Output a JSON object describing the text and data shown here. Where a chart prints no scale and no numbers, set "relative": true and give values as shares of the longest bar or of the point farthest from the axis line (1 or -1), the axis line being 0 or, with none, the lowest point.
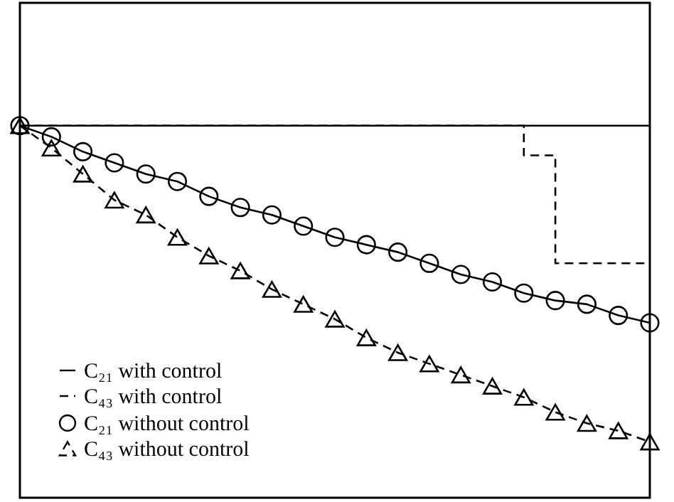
{
  "chart_data": {
    "type": "line",
    "relative": true,
    "tick_labels": false,
    "legend": "bottom left",
    "grid": false,
    "categories": [
      null,
      null,
      null,
      null,
      null,
      null,
      null,
      null,
      null,
      null,
      null,
      null,
      null,
      null,
      null,
      null,
      null,
      null,
      null,
      null,
      null
    ],
    "series": [
      {
        "name": "C₂₁ with control",
        "color": "#000000",
        "line_style": "solid",
        "marker": "none",
        "values": [
          1,
          1,
          1,
          1,
          1,
          1,
          1,
          1,
          1,
          1,
          1,
          1,
          1,
          1,
          1,
          1,
          1,
          1,
          1,
          1,
          1
        ]
      },
      {
        "name": "C₄₃ with control",
        "type": "step",
        "color": "#000000",
        "line_style": "dashed",
        "marker": "none",
        "values": [
          1,
          1,
          1,
          1,
          1,
          1,
          1,
          1,
          1,
          1,
          1,
          1,
          1,
          1,
          1,
          1,
          0.92,
          0.63,
          0.63,
          0.63,
          0.63
        ]
      },
      {
        "name": "C₂₁ without control",
        "color": "#000000",
        "line_style": "solid",
        "marker": "circle",
        "values": [
          1.0,
          0.97,
          0.93,
          0.9,
          0.87,
          0.85,
          0.81,
          0.78,
          0.76,
          0.73,
          0.7,
          0.68,
          0.66,
          0.63,
          0.6,
          0.58,
          0.55,
          0.53,
          0.52,
          0.49,
          0.47
        ]
      },
      {
        "name": "C₄₃ without control",
        "color": "#000000",
        "line_style": "dashed",
        "marker": "triangle",
        "values": [
          1.0,
          0.94,
          0.87,
          0.8,
          0.76,
          0.7,
          0.65,
          0.61,
          0.56,
          0.52,
          0.48,
          0.43,
          0.39,
          0.36,
          0.33,
          0.3,
          0.27,
          0.23,
          0.2,
          0.18,
          0.15
        ]
      }
    ]
  }
}
